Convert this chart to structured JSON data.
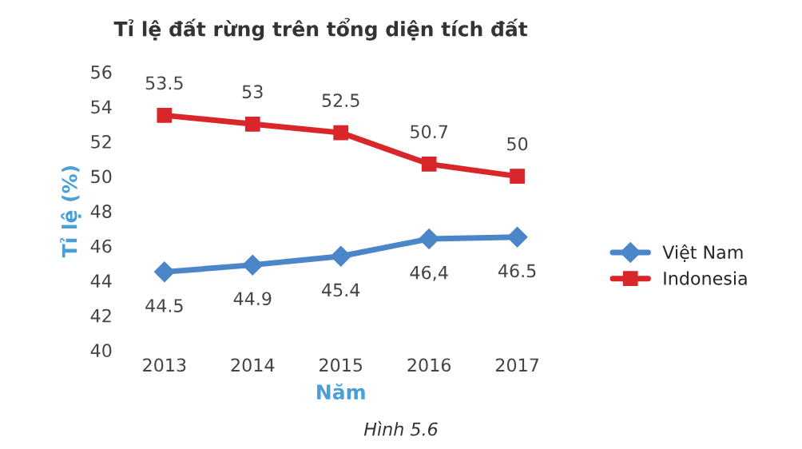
{
  "chart_data": {
    "type": "line",
    "title": "Tỉ lệ đất rừng trên tổng diện tích đất",
    "xlabel": "Năm",
    "ylabel": "Tỉ lệ (%)",
    "categories": [
      "2013",
      "2014",
      "2015",
      "2016",
      "2017"
    ],
    "series": [
      {
        "name": "Việt Nam",
        "color": "#4a86c8",
        "marker": "diamond",
        "values": [
          44.5,
          44.9,
          45.4,
          46.4,
          46.5
        ],
        "value_labels": [
          "44.5",
          "44.9",
          "45.4",
          "46,4",
          "46.5"
        ]
      },
      {
        "name": "Indonesia",
        "color": "#d9262a",
        "marker": "square",
        "values": [
          53.5,
          53,
          52.5,
          50.7,
          50
        ],
        "value_labels": [
          "53.5",
          "53",
          "52.5",
          "50.7",
          "50"
        ]
      }
    ],
    "ylim": [
      40,
      56
    ],
    "yticks": [
      40,
      42,
      44,
      46,
      48,
      50,
      52,
      54,
      56
    ],
    "grid": false,
    "legend": "right",
    "annotations": [
      "Hình 5.6"
    ]
  }
}
